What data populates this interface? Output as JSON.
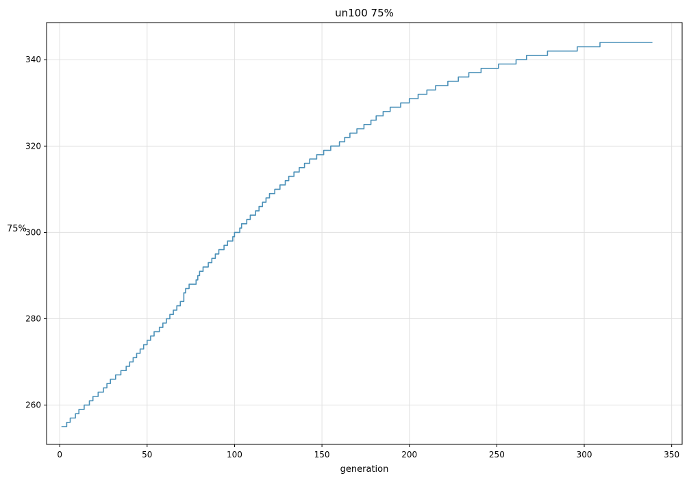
{
  "chart_data": {
    "type": "line",
    "title": "un100 75%",
    "xlabel": "generation",
    "ylabel": "75%",
    "xlim": [
      -7.5,
      356
    ],
    "ylim": [
      250.9,
      348.6
    ],
    "xticks": [
      0,
      50,
      100,
      150,
      200,
      250,
      300,
      350
    ],
    "yticks": [
      260,
      280,
      300,
      320,
      340
    ],
    "grid": true,
    "legend": "none",
    "series": [
      {
        "color": "#4a90b8",
        "step_points": [
          [
            1,
            255
          ],
          [
            4,
            256
          ],
          [
            6,
            257
          ],
          [
            9,
            258
          ],
          [
            11,
            259
          ],
          [
            14,
            260
          ],
          [
            17,
            261
          ],
          [
            19,
            262
          ],
          [
            22,
            263
          ],
          [
            25,
            264
          ],
          [
            27,
            265
          ],
          [
            29,
            266
          ],
          [
            32,
            267
          ],
          [
            35,
            268
          ],
          [
            38,
            269
          ],
          [
            40,
            270
          ],
          [
            42,
            271
          ],
          [
            44,
            272
          ],
          [
            46,
            273
          ],
          [
            48,
            274
          ],
          [
            50,
            275
          ],
          [
            52,
            276
          ],
          [
            54,
            277
          ],
          [
            57,
            278
          ],
          [
            59,
            279
          ],
          [
            61,
            280
          ],
          [
            63,
            281
          ],
          [
            65,
            282
          ],
          [
            67,
            283
          ],
          [
            69,
            284
          ],
          [
            71,
            286
          ],
          [
            72,
            287
          ],
          [
            74,
            288
          ],
          [
            78,
            289
          ],
          [
            79,
            290
          ],
          [
            80,
            291
          ],
          [
            82,
            292
          ],
          [
            85,
            293
          ],
          [
            87,
            294
          ],
          [
            89,
            295
          ],
          [
            91,
            296
          ],
          [
            94,
            297
          ],
          [
            96,
            298
          ],
          [
            99,
            299
          ],
          [
            100,
            300
          ],
          [
            103,
            301
          ],
          [
            104,
            302
          ],
          [
            107,
            303
          ],
          [
            109,
            304
          ],
          [
            112,
            305
          ],
          [
            114,
            306
          ],
          [
            116,
            307
          ],
          [
            118,
            308
          ],
          [
            120,
            309
          ],
          [
            123,
            310
          ],
          [
            126,
            311
          ],
          [
            129,
            312
          ],
          [
            131,
            313
          ],
          [
            134,
            314
          ],
          [
            137,
            315
          ],
          [
            140,
            316
          ],
          [
            143,
            317
          ],
          [
            147,
            318
          ],
          [
            151,
            319
          ],
          [
            155,
            320
          ],
          [
            160,
            321
          ],
          [
            163,
            322
          ],
          [
            166,
            323
          ],
          [
            170,
            324
          ],
          [
            174,
            325
          ],
          [
            178,
            326
          ],
          [
            181,
            327
          ],
          [
            185,
            328
          ],
          [
            189,
            329
          ],
          [
            195,
            330
          ],
          [
            200,
            331
          ],
          [
            205,
            332
          ],
          [
            210,
            333
          ],
          [
            215,
            334
          ],
          [
            222,
            335
          ],
          [
            228,
            336
          ],
          [
            234,
            337
          ],
          [
            241,
            338
          ],
          [
            251,
            339
          ],
          [
            261,
            340
          ],
          [
            267,
            341
          ],
          [
            279,
            342
          ],
          [
            296,
            343
          ],
          [
            309,
            344
          ],
          [
            339,
            344
          ]
        ]
      }
    ]
  }
}
